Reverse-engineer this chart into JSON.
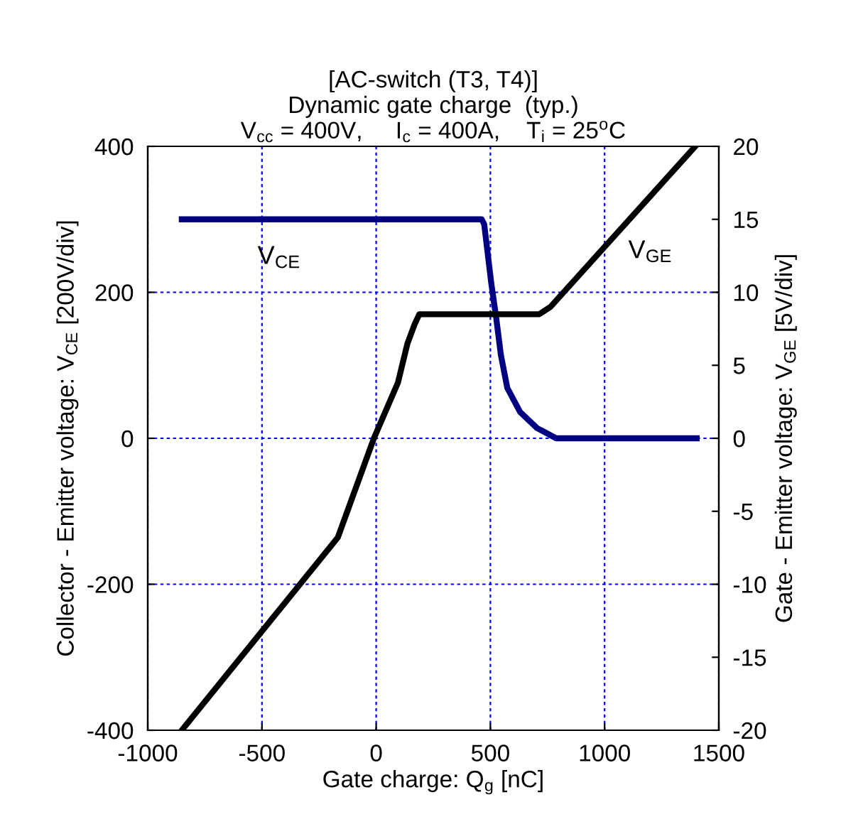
{
  "chart_data": {
    "type": "line",
    "title": "[AC-switch (T3, T4)]\nDynamic gate charge  (typ.)\nV$_{cc}$ = 400V,     I$_{c}$ = 400A,    T$_{i}$ = 25$^{o}$C",
    "xlabel": "Gate charge: Q$_{g}$ [nC]",
    "ylabel": "Collector - Emitter voltage: V$_{CE}$ [200V/div]",
    "y2label": "Gate - Emitter voltage: V$_{GE}$ [5V/div]",
    "xlim": [
      -1000,
      1500
    ],
    "xticks": [
      -1000,
      -500,
      0,
      500,
      1000,
      1500
    ],
    "ylim": [
      -400,
      400
    ],
    "yticks": [
      -400,
      -200,
      0,
      200,
      400
    ],
    "y2lim": [
      -20,
      20
    ],
    "y2ticks": [
      -20,
      -15,
      -10,
      -5,
      0,
      5,
      10,
      15,
      20
    ],
    "grid": true,
    "legend": false,
    "series": [
      {
        "name": "V$_{CE}$",
        "color": "#000080",
        "x": [
          -851,
          462,
          473,
          504,
          525,
          546,
          574,
          630,
          704,
          788,
          1403
        ],
        "values": [
          300,
          300,
          293,
          212,
          166,
          114,
          69,
          36,
          14,
          0,
          0
        ]
      },
      {
        "name": "V$_{GE}$",
        "color": "#000000",
        "axis": "y2",
        "x": [
          -851,
          -168,
          -10,
          95,
          137,
          168,
          189,
          714,
          763,
          1397
        ],
        "values": [
          -20,
          -6.8,
          0,
          3.8,
          6.5,
          7.8,
          8.5,
          8.5,
          9.0,
          20
        ]
      }
    ]
  }
}
